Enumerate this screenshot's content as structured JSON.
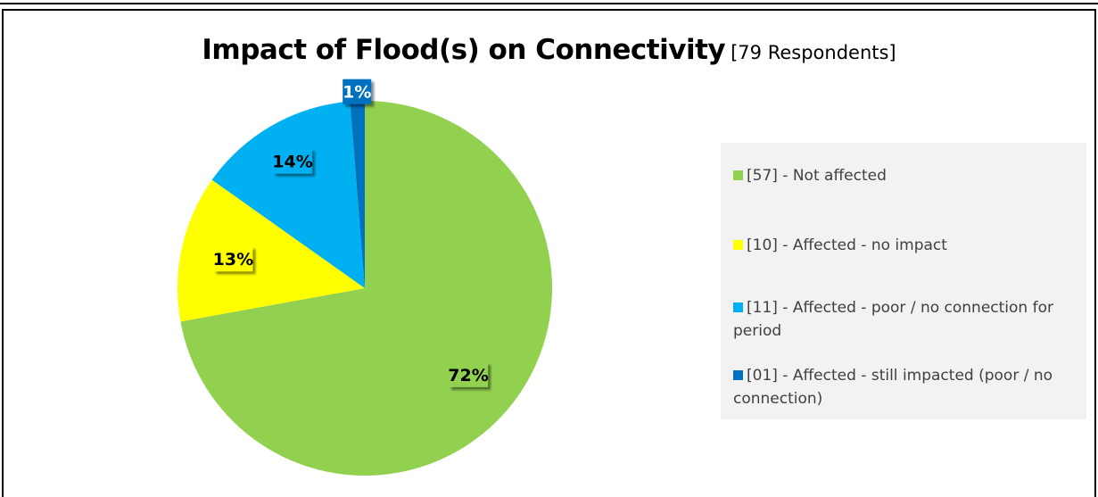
{
  "title": "Impact of Flood(s) on Connectivity",
  "subtitle": "[79 Respondents]",
  "chart_data": {
    "type": "pie",
    "title": "Impact of Flood(s) on Connectivity [79 Respondents]",
    "slices": [
      {
        "label": "[57] - Not affected",
        "count": 57,
        "percent_label": "72%",
        "color": "#92d050"
      },
      {
        "label": "[10] - Affected - no impact",
        "count": 10,
        "percent_label": "13%",
        "color": "#ffff00"
      },
      {
        "label": "[11] - Affected - poor / no connection for period",
        "count": 11,
        "percent_label": "14%",
        "color": "#00b0f0"
      },
      {
        "label": "[01] - Affected - still impacted (poor / no connection)",
        "count": 1,
        "percent_label": "1%",
        "color": "#0070c0"
      }
    ],
    "legend_position": "right"
  }
}
